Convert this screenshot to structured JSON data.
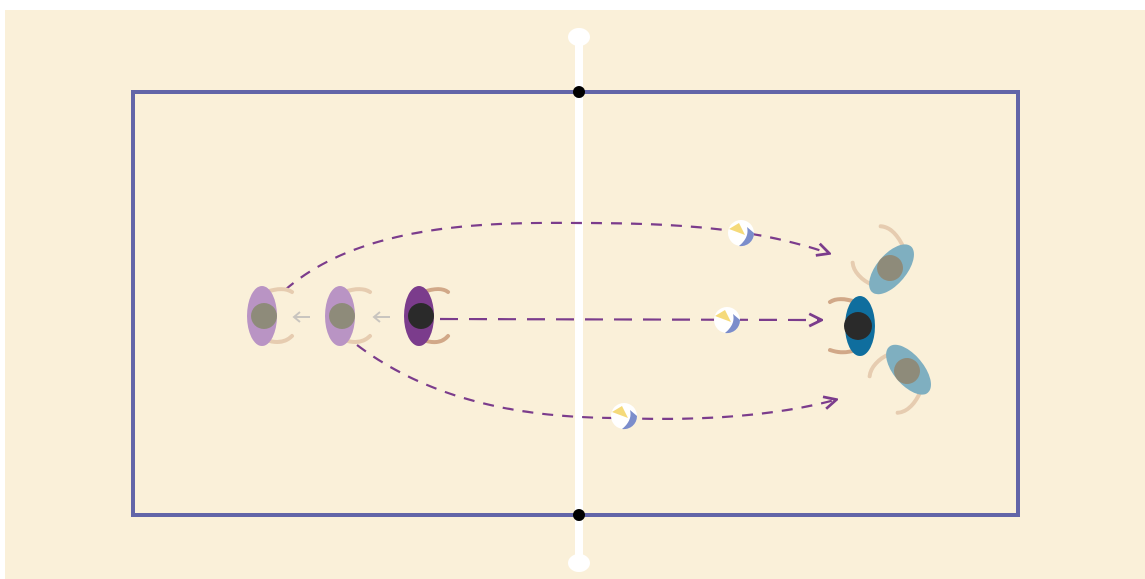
{
  "diagram": {
    "type": "volleyball-drill-top-view",
    "colors": {
      "background": "#FAF0D9",
      "court_line": "#6265A8",
      "net": "#FFFFFF",
      "net_post": "#000000",
      "trajectory": "#7B3C8C",
      "movement_arrow": "#C9C5BF",
      "team_a_active": "#7B3C8C",
      "team_a_waiting": "#B994C4",
      "team_b_active": "#0F6E9E",
      "team_b_waiting": "#7FAFC0",
      "head_light": "#8E8B7A",
      "head_dark": "#2A2A2A",
      "arm": "#D9B89A",
      "ball_white": "#FFFFFF",
      "ball_yellow": "#F5DA7A",
      "ball_blue": "#7B8DCB"
    },
    "icons": [
      "player-icon",
      "volleyball-icon",
      "net-post-icon",
      "arrow-icon"
    ],
    "elements": {
      "left_team": [
        {
          "role": "waiting",
          "shade": "light"
        },
        {
          "role": "waiting",
          "shade": "light"
        },
        {
          "role": "active-passer",
          "shade": "dark"
        }
      ],
      "right_team": [
        {
          "role": "target",
          "shade": "light"
        },
        {
          "role": "active-receiver",
          "shade": "dark"
        },
        {
          "role": "target",
          "shade": "light"
        }
      ],
      "balls": 3,
      "trajectories": [
        "high-arc",
        "straight",
        "low-arc"
      ],
      "movement_arrows": 2
    }
  }
}
